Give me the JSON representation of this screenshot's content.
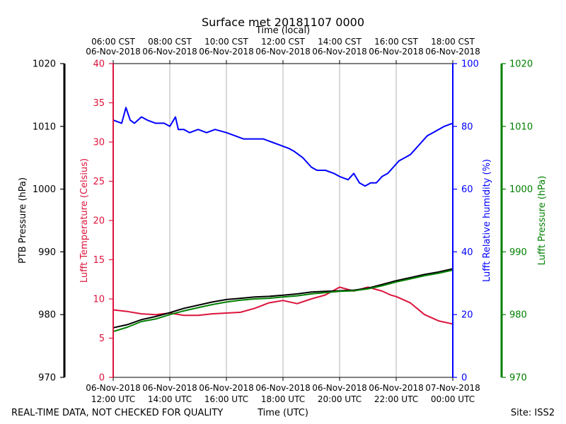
{
  "chart_data": {
    "type": "line",
    "title": "Surface met 20181107 0000",
    "top_axis_label": "Time (local)",
    "top_ticks": [
      [
        "06:00 CST",
        "06-Nov-2018"
      ],
      [
        "08:00 CST",
        "06-Nov-2018"
      ],
      [
        "10:00 CST",
        "06-Nov-2018"
      ],
      [
        "12:00 CST",
        "06-Nov-2018"
      ],
      [
        "14:00 CST",
        "06-Nov-2018"
      ],
      [
        "16:00 CST",
        "06-Nov-2018"
      ],
      [
        "18:00 CST",
        "06-Nov-2018"
      ]
    ],
    "xlabel": "Time (UTC)",
    "x_range_hours_utc": [
      12,
      24
    ],
    "bottom_ticks": [
      [
        "06-Nov-2018",
        "12:00 UTC"
      ],
      [
        "06-Nov-2018",
        "14:00 UTC"
      ],
      [
        "06-Nov-2018",
        "16:00 UTC"
      ],
      [
        "06-Nov-2018",
        "18:00 UTC"
      ],
      [
        "06-Nov-2018",
        "20:00 UTC"
      ],
      [
        "06-Nov-2018",
        "22:00 UTC"
      ],
      [
        "07-Nov-2018",
        "00:00 UTC"
      ]
    ],
    "axes": {
      "ptb_pressure": {
        "label": "PTB Pressure (hPa)",
        "range": [
          970,
          1020
        ],
        "ticks": [
          "970",
          "980",
          "990",
          "1000",
          "1010",
          "1020"
        ],
        "color": "#000000"
      },
      "temperature": {
        "label": "Lufft Temperature (Celsius)",
        "range": [
          0,
          40
        ],
        "ticks": [
          "0",
          "5",
          "10",
          "15",
          "20",
          "25",
          "30",
          "35",
          "40"
        ],
        "color": "#dc143c"
      },
      "humidity": {
        "label": "Lufft Relative humidity (%)",
        "range": [
          0,
          100
        ],
        "ticks": [
          "0",
          "20",
          "40",
          "60",
          "80",
          "100"
        ],
        "color": "#0000ff"
      },
      "lufft_pressure": {
        "label": "Lufft Pressure (hPa)",
        "range": [
          970,
          1020
        ],
        "ticks": [
          "970",
          "980",
          "990",
          "1000",
          "1010",
          "1020"
        ],
        "color": "#008000"
      }
    },
    "grid": "vertical",
    "series": [
      {
        "name": "Lufft Relative humidity",
        "axis": "humidity",
        "color": "#0000ff",
        "x": [
          12.0,
          12.3,
          12.45,
          12.6,
          12.75,
          13.0,
          13.2,
          13.5,
          13.8,
          14.0,
          14.2,
          14.3,
          14.5,
          14.7,
          15.0,
          15.3,
          15.6,
          16.0,
          16.3,
          16.6,
          17.0,
          17.3,
          17.6,
          17.9,
          18.2,
          18.4,
          18.7,
          19.0,
          19.2,
          19.5,
          19.8,
          20.0,
          20.3,
          20.5,
          20.7,
          20.9,
          21.1,
          21.3,
          21.5,
          21.7,
          21.9,
          22.1,
          22.3,
          22.5,
          22.7,
          22.9,
          23.1,
          23.3,
          23.5,
          23.7,
          24.0
        ],
        "values": [
          82,
          81,
          86,
          82,
          81,
          83,
          82,
          81,
          81,
          80,
          83,
          79,
          79,
          78,
          79,
          78,
          79,
          78,
          77,
          76,
          76,
          76,
          75,
          74,
          73,
          72,
          70,
          67,
          66,
          66,
          65,
          64,
          63,
          65,
          62,
          61,
          62,
          62,
          64,
          65,
          67,
          69,
          70,
          71,
          73,
          75,
          77,
          78,
          79,
          80,
          81
        ]
      },
      {
        "name": "Lufft Temperature",
        "axis": "temperature",
        "color": "#dc143c",
        "x": [
          12.0,
          12.5,
          13.0,
          13.5,
          14.0,
          14.5,
          15.0,
          15.5,
          16.0,
          16.5,
          17.0,
          17.5,
          18.0,
          18.5,
          19.0,
          19.5,
          20.0,
          20.5,
          21.0,
          21.5,
          21.8,
          22.0,
          22.5,
          23.0,
          23.5,
          24.0
        ],
        "values": [
          8.6,
          8.4,
          8.1,
          8.0,
          8.2,
          7.9,
          7.9,
          8.1,
          8.2,
          8.3,
          8.8,
          9.5,
          9.8,
          9.4,
          10.0,
          10.5,
          11.5,
          11.0,
          11.5,
          11.0,
          10.5,
          10.3,
          9.5,
          8.0,
          7.2,
          6.8
        ]
      },
      {
        "name": "PTB Pressure",
        "axis": "ptb_pressure",
        "color": "#000000",
        "x": [
          12.0,
          12.5,
          13.0,
          13.5,
          14.0,
          14.5,
          15.0,
          15.5,
          16.0,
          16.5,
          17.0,
          17.5,
          18.0,
          18.5,
          19.0,
          19.5,
          20.0,
          20.5,
          21.0,
          21.5,
          22.0,
          22.5,
          23.0,
          23.5,
          24.0
        ],
        "values": [
          977.9,
          978.4,
          979.2,
          979.7,
          980.3,
          981.0,
          981.5,
          982.0,
          982.4,
          982.6,
          982.8,
          982.9,
          983.1,
          983.3,
          983.6,
          983.7,
          983.8,
          983.9,
          984.2,
          984.8,
          985.4,
          985.9,
          986.4,
          986.8,
          987.3
        ]
      },
      {
        "name": "Lufft Pressure",
        "axis": "lufft_pressure",
        "color": "#008000",
        "x": [
          12.0,
          12.5,
          13.0,
          13.5,
          14.0,
          14.5,
          15.0,
          15.5,
          16.0,
          16.5,
          17.0,
          17.5,
          18.0,
          18.5,
          19.0,
          19.5,
          20.0,
          20.5,
          21.0,
          21.5,
          22.0,
          22.5,
          23.0,
          23.5,
          24.0
        ],
        "values": [
          977.3,
          978.0,
          978.9,
          979.3,
          980.0,
          980.6,
          981.1,
          981.6,
          982.0,
          982.3,
          982.5,
          982.6,
          982.8,
          983.0,
          983.3,
          983.5,
          983.7,
          983.8,
          984.1,
          984.6,
          985.2,
          985.7,
          986.2,
          986.6,
          987.1
        ]
      }
    ],
    "footer": {
      "left": "REAL-TIME DATA, NOT CHECKED FOR QUALITY",
      "right": "Site: ISS2"
    }
  }
}
